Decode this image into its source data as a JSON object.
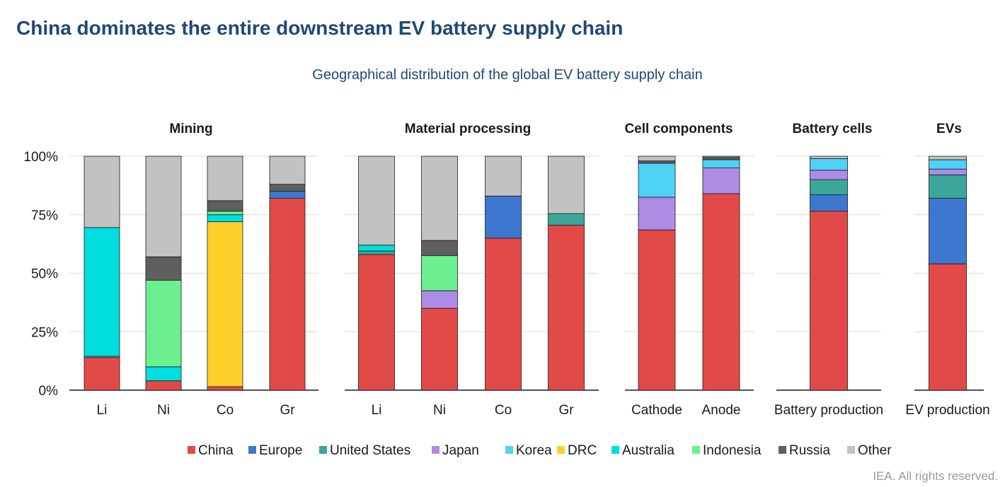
{
  "header": {
    "title": "China dominates the entire downstream EV battery supply chain",
    "subtitle": "Geographical distribution of the global EV battery supply chain",
    "credit": "IEA. All rights reserved."
  },
  "colors": {
    "China": "#e24a48",
    "Europe": "#3e77d0",
    "United States": "#3ba79a",
    "Japan": "#ad8ce6",
    "Korea": "#4fd2f6",
    "DRC": "#fcd22a",
    "Australia": "#00dedf",
    "Indonesia": "#6cf08f",
    "Russia": "#5f5f5f",
    "Other": "#c2c2c2",
    "grid": "#d9d9d9",
    "title": "#1f4876"
  },
  "chart_data": {
    "type": "bar",
    "stacked": true,
    "yticks": [
      "0%",
      "25%",
      "50%",
      "75%",
      "100%"
    ],
    "ylim": [
      0,
      100
    ],
    "grid": true,
    "legend_position": "bottom",
    "series_order": [
      "China",
      "Europe",
      "United States",
      "Japan",
      "Korea",
      "DRC",
      "Australia",
      "Indonesia",
      "Russia",
      "Other"
    ],
    "panels": [
      {
        "title": "Mining",
        "bars": [
          {
            "label": "Li",
            "values": {
              "Australia": 55,
              "China": 14,
              "Korea": 0.5,
              "Other": 30.5
            }
          },
          {
            "label": "Ni",
            "values": {
              "Indonesia": 37,
              "Australia": 6,
              "China": 4,
              "Russia": 10,
              "Other": 43
            }
          },
          {
            "label": "Co",
            "values": {
              "DRC": 70.5,
              "Indonesia": 1.5,
              "Australia": 3,
              "China": 1.5,
              "Russia": 4.5,
              "Other": 19
            }
          },
          {
            "label": "Gr",
            "values": {
              "China": 82,
              "Russia": 3,
              "Europe": 3,
              "Other": 12
            }
          }
        ]
      },
      {
        "title": "Material processing",
        "bars": [
          {
            "label": "Li",
            "values": {
              "China": 58,
              "Australia": 2.5,
              "United States": 1.5,
              "Other": 38
            }
          },
          {
            "label": "Ni",
            "values": {
              "China": 35,
              "Indonesia": 15,
              "Japan": 7.5,
              "Russia": 6.5,
              "Other": 36
            }
          },
          {
            "label": "Co",
            "values": {
              "China": 65,
              "Europe": 18,
              "Other": 17
            }
          },
          {
            "label": "Gr",
            "values": {
              "China": 70.5,
              "United States": 5,
              "Other": 24.5
            }
          }
        ]
      },
      {
        "title": "Cell components",
        "bars": [
          {
            "label": "Cathode",
            "values": {
              "China": 68.5,
              "Russia": 1,
              "Japan": 14,
              "Korea": 14.5,
              "Other": 2
            }
          },
          {
            "label": "Anode",
            "values": {
              "China": 84,
              "Russia": 1,
              "Japan": 11,
              "Korea": 3.5,
              "Other": 0.5
            }
          }
        ]
      },
      {
        "title": "Battery cells",
        "bars": [
          {
            "label": "Battery production",
            "values": {
              "China": 76.5,
              "Europe": 7,
              "United States": 6.5,
              "Korea": 5,
              "Japan": 4,
              "Other": 1
            }
          }
        ]
      },
      {
        "title": "EVs",
        "bars": [
          {
            "label": "EV production",
            "values": {
              "China": 54,
              "Europe": 28,
              "United States": 10,
              "Korea": 4,
              "Japan": 2.5,
              "Other": 1.5
            }
          }
        ]
      }
    ]
  }
}
